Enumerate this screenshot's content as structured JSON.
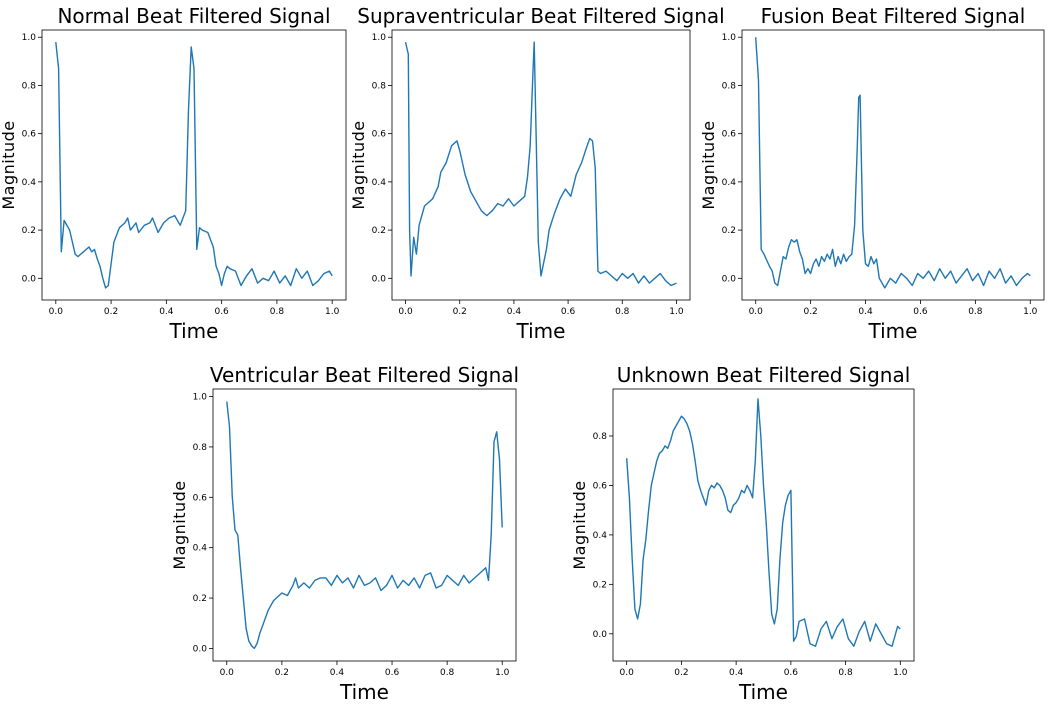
{
  "chart_data": [
    {
      "type": "line",
      "title": "Normal Beat Filtered Signal",
      "xlabel": "Time",
      "ylabel": "Magnitude",
      "xlim": [
        -0.05,
        1.05
      ],
      "ylim": [
        -0.09,
        1.03
      ],
      "xticks": [
        0.0,
        0.2,
        0.4,
        0.6,
        0.8,
        1.0
      ],
      "yticks": [
        0.0,
        0.2,
        0.4,
        0.6,
        0.8,
        1.0
      ],
      "grid": false,
      "series": [
        {
          "x": [
            0.0,
            0.01,
            0.02,
            0.03,
            0.05,
            0.07,
            0.08,
            0.1,
            0.12,
            0.13,
            0.14,
            0.15,
            0.16,
            0.17,
            0.18,
            0.19,
            0.2,
            0.21,
            0.23,
            0.25,
            0.26,
            0.27,
            0.29,
            0.3,
            0.32,
            0.34,
            0.35,
            0.37,
            0.39,
            0.41,
            0.43,
            0.45,
            0.47,
            0.48,
            0.49,
            0.5,
            0.51,
            0.52,
            0.53,
            0.55,
            0.57,
            0.58,
            0.59,
            0.6,
            0.61,
            0.62,
            0.63,
            0.65,
            0.67,
            0.69,
            0.71,
            0.73,
            0.75,
            0.77,
            0.79,
            0.81,
            0.83,
            0.85,
            0.87,
            0.89,
            0.91,
            0.93,
            0.95,
            0.97,
            0.99,
            1.0
          ],
          "y": [
            0.98,
            0.87,
            0.11,
            0.24,
            0.2,
            0.1,
            0.09,
            0.11,
            0.13,
            0.11,
            0.12,
            0.08,
            0.05,
            0.0,
            -0.04,
            -0.03,
            0.06,
            0.15,
            0.21,
            0.23,
            0.25,
            0.2,
            0.23,
            0.19,
            0.22,
            0.23,
            0.25,
            0.19,
            0.23,
            0.25,
            0.26,
            0.22,
            0.28,
            0.7,
            0.96,
            0.87,
            0.12,
            0.21,
            0.2,
            0.19,
            0.13,
            0.05,
            0.02,
            -0.03,
            0.02,
            0.05,
            0.04,
            0.03,
            -0.03,
            0.01,
            0.04,
            -0.02,
            0.0,
            -0.01,
            0.03,
            -0.02,
            0.01,
            -0.03,
            0.04,
            0.0,
            0.03,
            -0.03,
            -0.01,
            0.02,
            0.03,
            0.01
          ]
        }
      ]
    },
    {
      "type": "line",
      "title": "Supraventricular Beat Filtered Signal",
      "xlabel": "Time",
      "ylabel": "Magnitude",
      "xlim": [
        -0.05,
        1.05
      ],
      "ylim": [
        -0.09,
        1.03
      ],
      "xticks": [
        0.0,
        0.2,
        0.4,
        0.6,
        0.8,
        1.0
      ],
      "yticks": [
        0.0,
        0.2,
        0.4,
        0.6,
        0.8,
        1.0
      ],
      "grid": false,
      "series": [
        {
          "x": [
            0.0,
            0.01,
            0.015,
            0.02,
            0.03,
            0.04,
            0.05,
            0.07,
            0.08,
            0.1,
            0.12,
            0.13,
            0.15,
            0.17,
            0.19,
            0.2,
            0.22,
            0.24,
            0.26,
            0.28,
            0.3,
            0.32,
            0.34,
            0.36,
            0.38,
            0.4,
            0.42,
            0.44,
            0.45,
            0.46,
            0.47,
            0.475,
            0.48,
            0.49,
            0.5,
            0.52,
            0.53,
            0.55,
            0.57,
            0.59,
            0.61,
            0.63,
            0.65,
            0.67,
            0.68,
            0.69,
            0.7,
            0.71,
            0.72,
            0.74,
            0.76,
            0.78,
            0.8,
            0.82,
            0.84,
            0.86,
            0.88,
            0.9,
            0.92,
            0.94,
            0.96,
            0.98,
            1.0
          ],
          "y": [
            0.98,
            0.93,
            0.2,
            0.01,
            0.17,
            0.1,
            0.22,
            0.3,
            0.31,
            0.33,
            0.38,
            0.44,
            0.48,
            0.55,
            0.57,
            0.53,
            0.43,
            0.36,
            0.32,
            0.28,
            0.26,
            0.28,
            0.31,
            0.3,
            0.33,
            0.3,
            0.32,
            0.34,
            0.42,
            0.55,
            0.85,
            0.98,
            0.7,
            0.15,
            0.01,
            0.12,
            0.2,
            0.27,
            0.33,
            0.37,
            0.34,
            0.43,
            0.48,
            0.55,
            0.58,
            0.57,
            0.46,
            0.03,
            0.02,
            0.03,
            0.01,
            -0.01,
            0.02,
            0.0,
            0.02,
            -0.02,
            0.01,
            -0.02,
            0.0,
            0.02,
            -0.01,
            -0.03,
            -0.02
          ]
        }
      ]
    },
    {
      "type": "line",
      "title": "Fusion Beat Filtered Signal",
      "xlabel": "Time",
      "ylabel": "Magnitude",
      "xlim": [
        -0.05,
        1.05
      ],
      "ylim": [
        -0.09,
        1.03
      ],
      "xticks": [
        0.0,
        0.2,
        0.4,
        0.6,
        0.8,
        1.0
      ],
      "yticks": [
        0.0,
        0.2,
        0.4,
        0.6,
        0.8,
        1.0
      ],
      "grid": false,
      "series": [
        {
          "x": [
            0.0,
            0.01,
            0.02,
            0.03,
            0.05,
            0.06,
            0.07,
            0.08,
            0.09,
            0.1,
            0.11,
            0.12,
            0.13,
            0.14,
            0.15,
            0.16,
            0.17,
            0.18,
            0.19,
            0.2,
            0.21,
            0.22,
            0.23,
            0.24,
            0.25,
            0.26,
            0.27,
            0.28,
            0.29,
            0.3,
            0.31,
            0.32,
            0.33,
            0.34,
            0.35,
            0.36,
            0.37,
            0.375,
            0.38,
            0.39,
            0.4,
            0.41,
            0.42,
            0.43,
            0.44,
            0.45,
            0.47,
            0.49,
            0.51,
            0.53,
            0.55,
            0.57,
            0.59,
            0.61,
            0.63,
            0.65,
            0.67,
            0.69,
            0.71,
            0.73,
            0.75,
            0.77,
            0.79,
            0.81,
            0.83,
            0.85,
            0.87,
            0.89,
            0.91,
            0.93,
            0.95,
            0.97,
            0.99,
            1.0
          ],
          "y": [
            1.0,
            0.82,
            0.12,
            0.1,
            0.05,
            0.03,
            -0.02,
            -0.03,
            0.03,
            0.09,
            0.08,
            0.13,
            0.16,
            0.15,
            0.16,
            0.11,
            0.08,
            0.02,
            0.04,
            0.02,
            0.06,
            0.08,
            0.05,
            0.09,
            0.07,
            0.1,
            0.08,
            0.12,
            0.05,
            0.09,
            0.06,
            0.1,
            0.07,
            0.09,
            0.1,
            0.22,
            0.55,
            0.75,
            0.76,
            0.2,
            0.06,
            0.05,
            0.09,
            0.06,
            0.08,
            0.0,
            -0.04,
            0.0,
            -0.02,
            0.02,
            0.0,
            -0.03,
            0.02,
            0.0,
            0.03,
            -0.01,
            0.04,
            0.0,
            0.03,
            -0.02,
            0.01,
            0.04,
            -0.01,
            0.02,
            -0.03,
            0.03,
            0.0,
            0.04,
            -0.02,
            0.01,
            -0.03,
            0.0,
            0.02,
            0.01
          ]
        }
      ]
    },
    {
      "type": "line",
      "title": "Ventricular Beat Filtered Signal",
      "xlabel": "Time",
      "ylabel": "Magnitude",
      "xlim": [
        -0.05,
        1.05
      ],
      "ylim": [
        -0.05,
        1.03
      ],
      "xticks": [
        0.0,
        0.2,
        0.4,
        0.6,
        0.8,
        1.0
      ],
      "yticks": [
        0.0,
        0.2,
        0.4,
        0.6,
        0.8,
        1.0
      ],
      "grid": false,
      "series": [
        {
          "x": [
            0.0,
            0.01,
            0.02,
            0.03,
            0.04,
            0.05,
            0.06,
            0.07,
            0.08,
            0.09,
            0.1,
            0.11,
            0.12,
            0.13,
            0.14,
            0.15,
            0.16,
            0.17,
            0.18,
            0.2,
            0.22,
            0.24,
            0.25,
            0.26,
            0.28,
            0.3,
            0.32,
            0.34,
            0.36,
            0.38,
            0.4,
            0.42,
            0.44,
            0.46,
            0.48,
            0.5,
            0.52,
            0.54,
            0.56,
            0.58,
            0.6,
            0.62,
            0.64,
            0.66,
            0.68,
            0.7,
            0.72,
            0.74,
            0.76,
            0.78,
            0.8,
            0.82,
            0.84,
            0.86,
            0.88,
            0.9,
            0.92,
            0.94,
            0.95,
            0.96,
            0.97,
            0.98,
            0.99,
            1.0
          ],
          "y": [
            0.98,
            0.88,
            0.6,
            0.47,
            0.45,
            0.32,
            0.2,
            0.08,
            0.03,
            0.01,
            0.0,
            0.02,
            0.06,
            0.09,
            0.12,
            0.15,
            0.17,
            0.19,
            0.2,
            0.22,
            0.21,
            0.25,
            0.28,
            0.24,
            0.26,
            0.24,
            0.27,
            0.28,
            0.28,
            0.25,
            0.29,
            0.26,
            0.28,
            0.24,
            0.29,
            0.25,
            0.26,
            0.28,
            0.23,
            0.25,
            0.29,
            0.24,
            0.27,
            0.25,
            0.28,
            0.24,
            0.29,
            0.3,
            0.24,
            0.25,
            0.29,
            0.27,
            0.25,
            0.29,
            0.26,
            0.28,
            0.3,
            0.32,
            0.27,
            0.45,
            0.82,
            0.86,
            0.75,
            0.48
          ]
        }
      ]
    },
    {
      "type": "line",
      "title": "Unknown Beat Filtered Signal",
      "xlabel": "Time",
      "ylabel": "Magnitude",
      "xlim": [
        -0.05,
        1.05
      ],
      "ylim": [
        -0.11,
        0.99
      ],
      "xticks": [
        0.0,
        0.2,
        0.4,
        0.6,
        0.8,
        1.0
      ],
      "yticks": [
        0.0,
        0.2,
        0.4,
        0.6,
        0.8
      ],
      "grid": false,
      "series": [
        {
          "x": [
            0.0,
            0.01,
            0.02,
            0.03,
            0.04,
            0.05,
            0.06,
            0.07,
            0.08,
            0.09,
            0.1,
            0.11,
            0.12,
            0.13,
            0.14,
            0.15,
            0.16,
            0.17,
            0.18,
            0.19,
            0.2,
            0.21,
            0.22,
            0.23,
            0.24,
            0.25,
            0.26,
            0.27,
            0.28,
            0.29,
            0.3,
            0.31,
            0.32,
            0.33,
            0.34,
            0.35,
            0.36,
            0.37,
            0.38,
            0.39,
            0.4,
            0.41,
            0.42,
            0.43,
            0.44,
            0.45,
            0.46,
            0.47,
            0.48,
            0.49,
            0.5,
            0.51,
            0.52,
            0.53,
            0.54,
            0.55,
            0.56,
            0.57,
            0.58,
            0.59,
            0.6,
            0.61,
            0.62,
            0.63,
            0.65,
            0.67,
            0.69,
            0.71,
            0.73,
            0.75,
            0.77,
            0.79,
            0.81,
            0.83,
            0.85,
            0.87,
            0.89,
            0.91,
            0.93,
            0.95,
            0.97,
            0.99,
            1.0
          ],
          "y": [
            0.71,
            0.55,
            0.3,
            0.1,
            0.06,
            0.12,
            0.3,
            0.38,
            0.5,
            0.6,
            0.65,
            0.7,
            0.73,
            0.74,
            0.76,
            0.75,
            0.78,
            0.82,
            0.84,
            0.86,
            0.88,
            0.87,
            0.85,
            0.82,
            0.77,
            0.7,
            0.62,
            0.58,
            0.55,
            0.52,
            0.58,
            0.6,
            0.59,
            0.61,
            0.6,
            0.58,
            0.55,
            0.5,
            0.49,
            0.52,
            0.53,
            0.55,
            0.58,
            0.57,
            0.6,
            0.58,
            0.55,
            0.7,
            0.95,
            0.8,
            0.6,
            0.45,
            0.25,
            0.08,
            0.04,
            0.1,
            0.3,
            0.45,
            0.52,
            0.56,
            0.58,
            -0.03,
            -0.01,
            0.05,
            0.06,
            -0.04,
            -0.05,
            0.02,
            0.05,
            -0.02,
            0.03,
            0.06,
            -0.02,
            -0.05,
            0.01,
            0.05,
            -0.03,
            0.04,
            0.0,
            -0.04,
            -0.05,
            0.03,
            0.02
          ]
        }
      ]
    }
  ]
}
